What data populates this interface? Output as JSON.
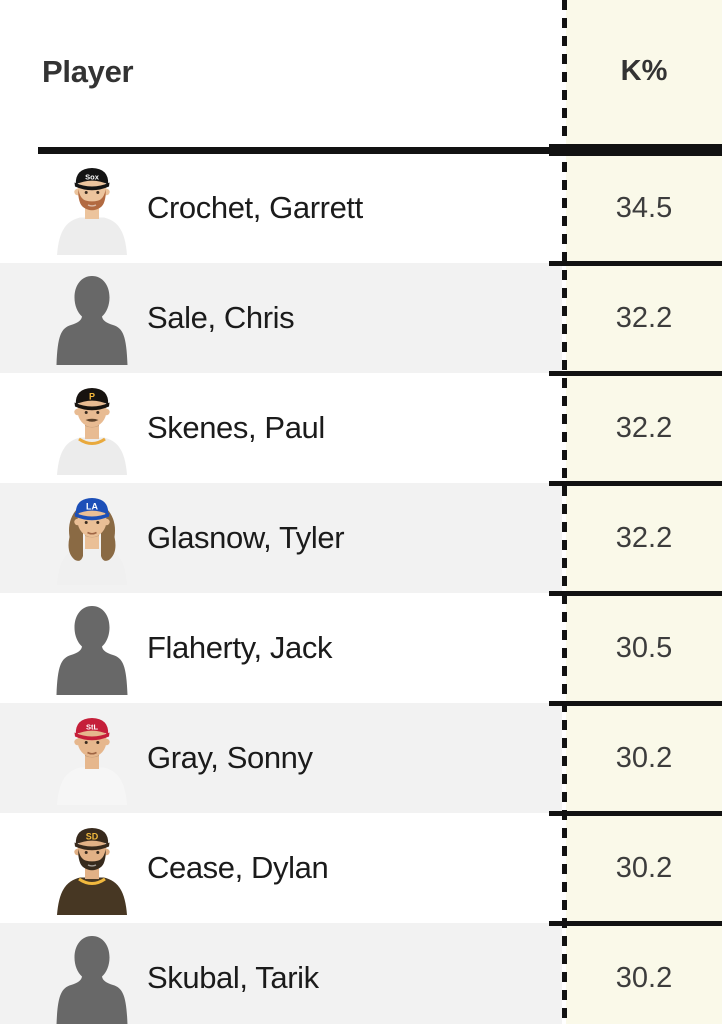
{
  "table": {
    "player_header": "Player",
    "stat_header": "K%",
    "rows": [
      {
        "name": "Crochet, Garrett",
        "k_pct": "34.5",
        "avatar": {
          "type": "photo",
          "cap": "#141414",
          "logo": "Sox",
          "logo_color": "#ffffff",
          "skin": "#ecc49d",
          "beard": "#b26a41",
          "jersey": "#ededed"
        }
      },
      {
        "name": "Sale, Chris",
        "k_pct": "32.2",
        "avatar": {
          "type": "silhouette"
        }
      },
      {
        "name": "Skenes, Paul",
        "k_pct": "32.2",
        "avatar": {
          "type": "photo",
          "cap": "#171310",
          "logo": "P",
          "logo_color": "#f6b93c",
          "skin": "#e8bb92",
          "mustache": "#5a4029",
          "jersey": "#ececec",
          "collar": "#e9a93c"
        }
      },
      {
        "name": "Glasnow, Tyler",
        "k_pct": "32.2",
        "avatar": {
          "type": "photo",
          "cap": "#1c4fb8",
          "logo": "LA",
          "logo_color": "#ffffff",
          "skin": "#eabf96",
          "hair": "#8a6a44",
          "jersey": "#f0f0f0"
        }
      },
      {
        "name": "Flaherty, Jack",
        "k_pct": "30.5",
        "avatar": {
          "type": "silhouette"
        }
      },
      {
        "name": "Gray, Sonny",
        "k_pct": "30.2",
        "avatar": {
          "type": "photo",
          "cap": "#c51f3a",
          "logo": "StL",
          "logo_color": "#ffffff",
          "skin": "#e6b78d",
          "jersey": "#f6f6f6"
        }
      },
      {
        "name": "Cease, Dylan",
        "k_pct": "30.2",
        "avatar": {
          "type": "photo",
          "cap": "#382a1d",
          "logo": "SD",
          "logo_color": "#f1b93e",
          "skin": "#e2b186",
          "beard": "#372a1c",
          "jersey": "#473723",
          "collar": "#f1b93e"
        }
      },
      {
        "name": "Skubal, Tarik",
        "k_pct": "30.2",
        "avatar": {
          "type": "silhouette"
        }
      }
    ]
  },
  "colors": {
    "stat_column_bg": "#FAF9E9",
    "row_stripe_bg": "#F2F2F2",
    "rule_black": "#121212",
    "header_text": "#333333",
    "name_text": "#1b1b1b",
    "value_text": "#3d3d3d",
    "silhouette_gray": "#686868"
  }
}
